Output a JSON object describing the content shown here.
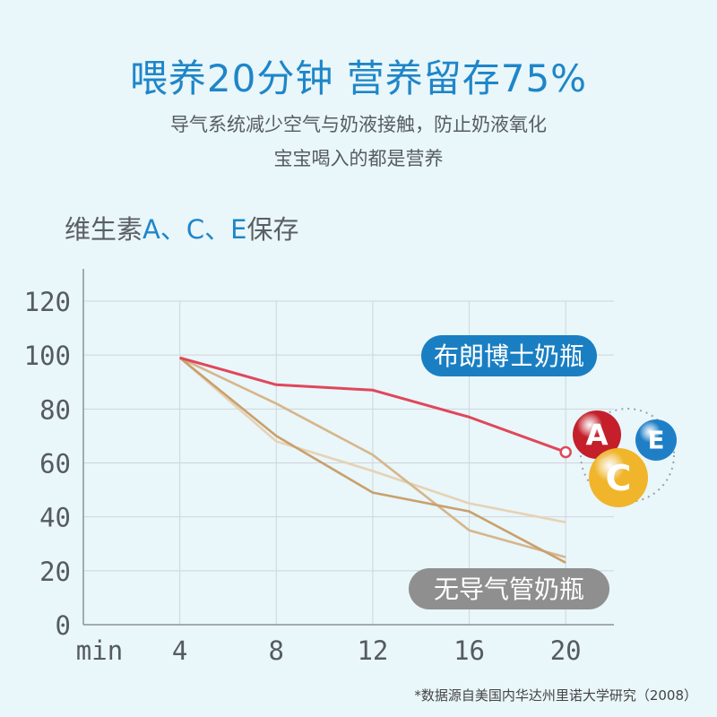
{
  "header": {
    "title": "喂养20分钟  营养留存75%",
    "subtitle_line1": "导气系统减少空气与奶液接触，防止奶液氧化",
    "subtitle_line2": "宝宝喝入的都是营养"
  },
  "chart_title": {
    "prefix": "维生素",
    "highlight": "A、C、E",
    "suffix": "保存"
  },
  "footnote": "*数据源自美国内华达州里诺大学研究（2008）",
  "chart_data": {
    "type": "line",
    "xlabel": "min",
    "ylabel": "",
    "x": [
      4,
      8,
      12,
      16,
      20
    ],
    "x_ticks": [
      "4",
      "8",
      "12",
      "16",
      "20"
    ],
    "y_ticks": [
      "0",
      "20",
      "40",
      "60",
      "80",
      "100",
      "120"
    ],
    "xlim": [
      0,
      22
    ],
    "ylim": [
      0,
      120
    ],
    "grid": true,
    "series": [
      {
        "name": "布朗博士奶瓶",
        "values": [
          99,
          89,
          87,
          77,
          64
        ],
        "color": "#e0475a",
        "label_color": "#1a7fc2"
      },
      {
        "name": "无导气管奶瓶",
        "values": [
          99,
          70,
          49,
          42,
          23
        ],
        "color": "#c9a06c",
        "label_color": "#8f8f8f"
      },
      {
        "name": "",
        "values": [
          99,
          82,
          63,
          35,
          25
        ],
        "color": "#d6b68a"
      },
      {
        "name": "",
        "values": [
          99,
          68,
          57,
          45,
          38
        ],
        "color": "#e6d2b4"
      }
    ],
    "badges": [
      {
        "letter": "A",
        "color": "#c41f2b"
      },
      {
        "letter": "E",
        "color": "#1f7fc6"
      },
      {
        "letter": "C",
        "color": "#f0b52a"
      }
    ]
  }
}
